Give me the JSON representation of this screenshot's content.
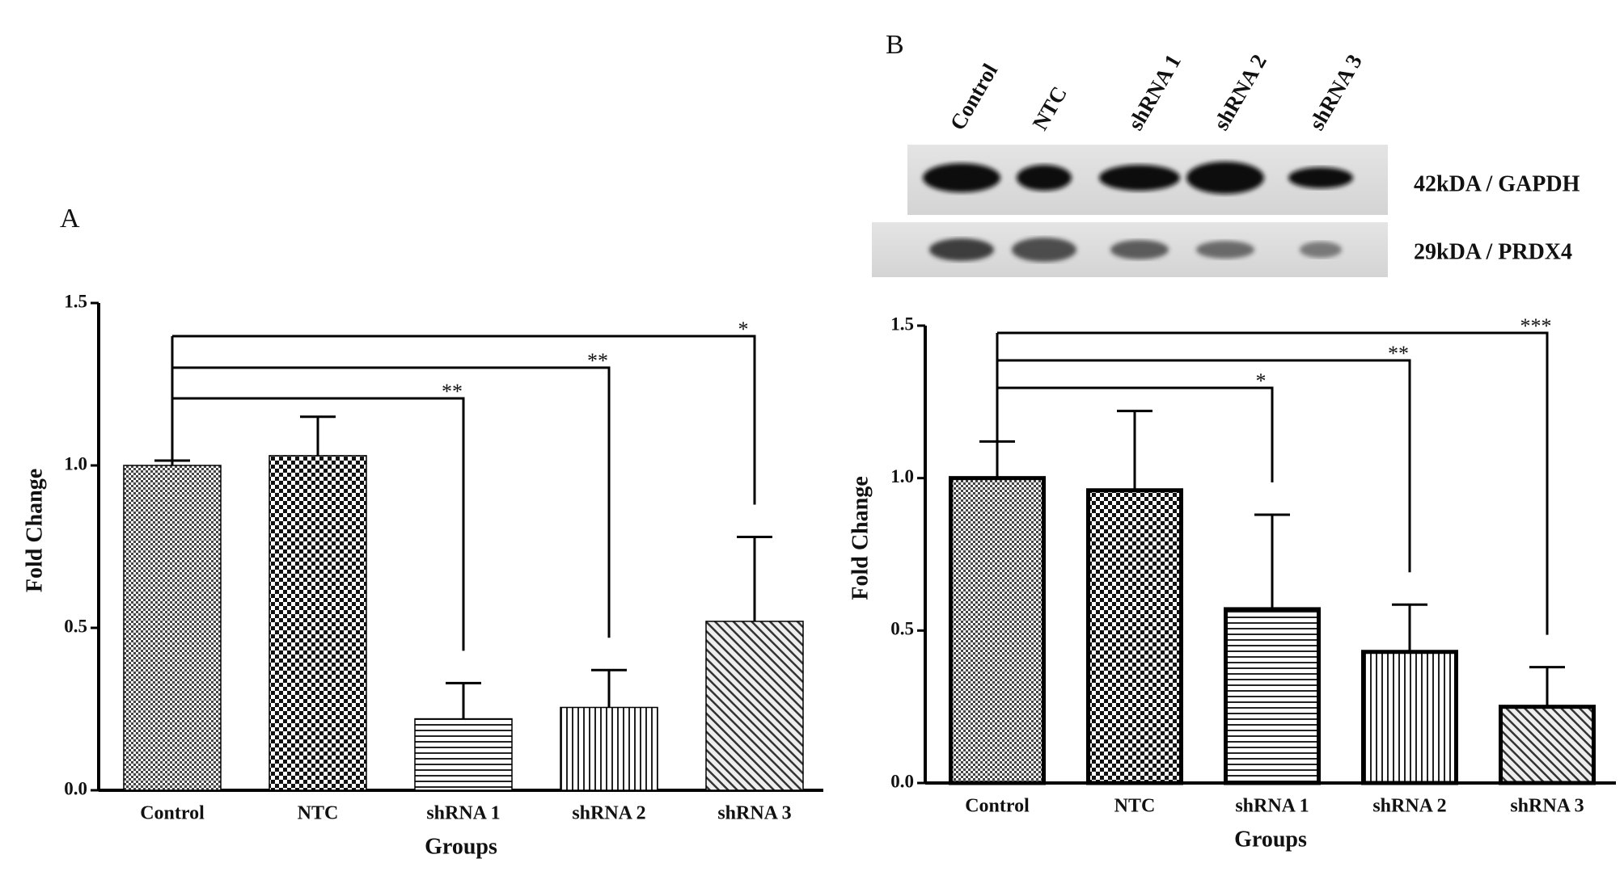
{
  "chart_data": [
    {
      "type": "bar",
      "label": "A",
      "xlabel": "Groups",
      "ylabel": "Fold Change",
      "categories": [
        "Control",
        "NTC",
        "shRNA 1",
        "shRNA 2",
        "shRNA 3"
      ],
      "values": [
        1.0,
        1.03,
        0.22,
        0.255,
        0.52
      ],
      "errors": [
        0.015,
        0.12,
        0.11,
        0.115,
        0.26
      ],
      "patterns": [
        "checker",
        "checker-large",
        "horizontal",
        "vertical",
        "diagonal"
      ],
      "color": "#000000",
      "ylim": [
        0,
        1.5
      ],
      "yticks": [
        {
          "value": 0,
          "label": "0.0"
        },
        {
          "value": 0.5,
          "label": "0.5"
        },
        {
          "value": 1,
          "label": "1.0"
        },
        {
          "value": 1.5,
          "label": "1.5"
        }
      ],
      "significance": [
        {
          "group": "shRNA 3",
          "label": "*"
        },
        {
          "group": "shRNA 2",
          "label": "**"
        },
        {
          "group": "shRNA 1",
          "label": "**"
        }
      ]
    },
    {
      "type": "bar",
      "label": "B",
      "xlabel": "Groups",
      "ylabel": "Fold Change",
      "categories": [
        "Control",
        "NTC",
        "shRNA 1",
        "shRNA 2",
        "shRNA 3"
      ],
      "values": [
        1.0,
        0.96,
        0.57,
        0.43,
        0.25
      ],
      "errors": [
        0.12,
        0.26,
        0.31,
        0.155,
        0.13
      ],
      "patterns": [
        "checker",
        "checker-large",
        "horizontal",
        "vertical",
        "diagonal"
      ],
      "color": "#000000",
      "ylim": [
        0,
        1.5
      ],
      "yticks": [
        {
          "value": 0,
          "label": "0.0"
        },
        {
          "value": 0.5,
          "label": "0.5"
        },
        {
          "value": 1,
          "label": "1.0"
        },
        {
          "value": 1.5,
          "label": "1.5"
        }
      ],
      "significance": [
        {
          "group": "shRNA 3",
          "label": "***"
        },
        {
          "group": "shRNA 2",
          "label": "**"
        },
        {
          "group": "shRNA 1",
          "label": "*"
        }
      ],
      "blot": {
        "lanes": [
          "Control",
          "NTC",
          "shRNA 1",
          "shRNA 2",
          "shRNA 3"
        ],
        "bands": [
          "42kDA / GAPDH",
          "29kDA / PRDX4"
        ]
      }
    }
  ]
}
